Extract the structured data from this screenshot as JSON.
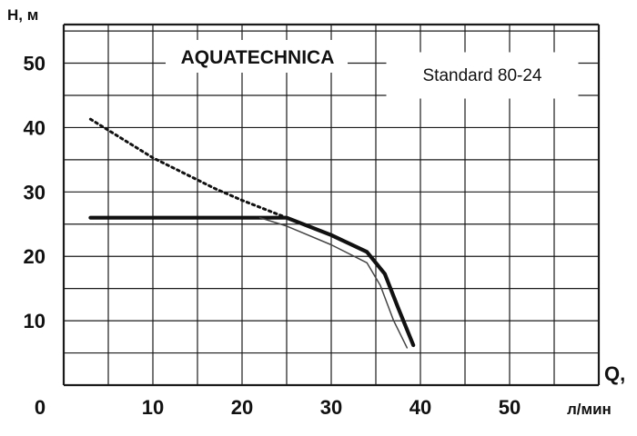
{
  "chart_data": {
    "type": "line",
    "brand": "AQUATECHNICA",
    "model": "Standard 80-24",
    "ylabel": "Н, м",
    "xlabel_q": "Q,",
    "xlabel_unit": "л/мин",
    "xlim": [
      0,
      60
    ],
    "ylim": [
      0,
      56
    ],
    "grid": true,
    "x_tick_labels": [
      {
        "value": 10,
        "label": "10"
      },
      {
        "value": 20,
        "label": "20"
      },
      {
        "value": 30,
        "label": "30"
      },
      {
        "value": 40,
        "label": "40"
      },
      {
        "value": 50,
        "label": "50"
      }
    ],
    "origin_label": "0",
    "y_tick_labels": [
      {
        "value": 10,
        "label": "10"
      },
      {
        "value": 20,
        "label": "20"
      },
      {
        "value": 30,
        "label": "30"
      },
      {
        "value": 40,
        "label": "40"
      },
      {
        "value": 50,
        "label": "50"
      }
    ],
    "series": [
      {
        "style": "dotted",
        "x": [
          3,
          10,
          17,
          20,
          25
        ],
        "y": [
          41.3,
          35.3,
          30.5,
          28.7,
          26.0
        ]
      },
      {
        "style": "thick",
        "x": [
          3,
          10,
          20,
          25,
          30,
          34,
          36,
          37.5,
          39.2
        ],
        "y": [
          26,
          26,
          26,
          26,
          23.3,
          20.7,
          17.3,
          12.0,
          6.2
        ]
      },
      {
        "style": "thin",
        "x": [
          22,
          25,
          30,
          34,
          35.5,
          37,
          38.5
        ],
        "y": [
          26,
          24.7,
          21.8,
          19.0,
          15.5,
          10.0,
          5.8
        ]
      }
    ]
  }
}
